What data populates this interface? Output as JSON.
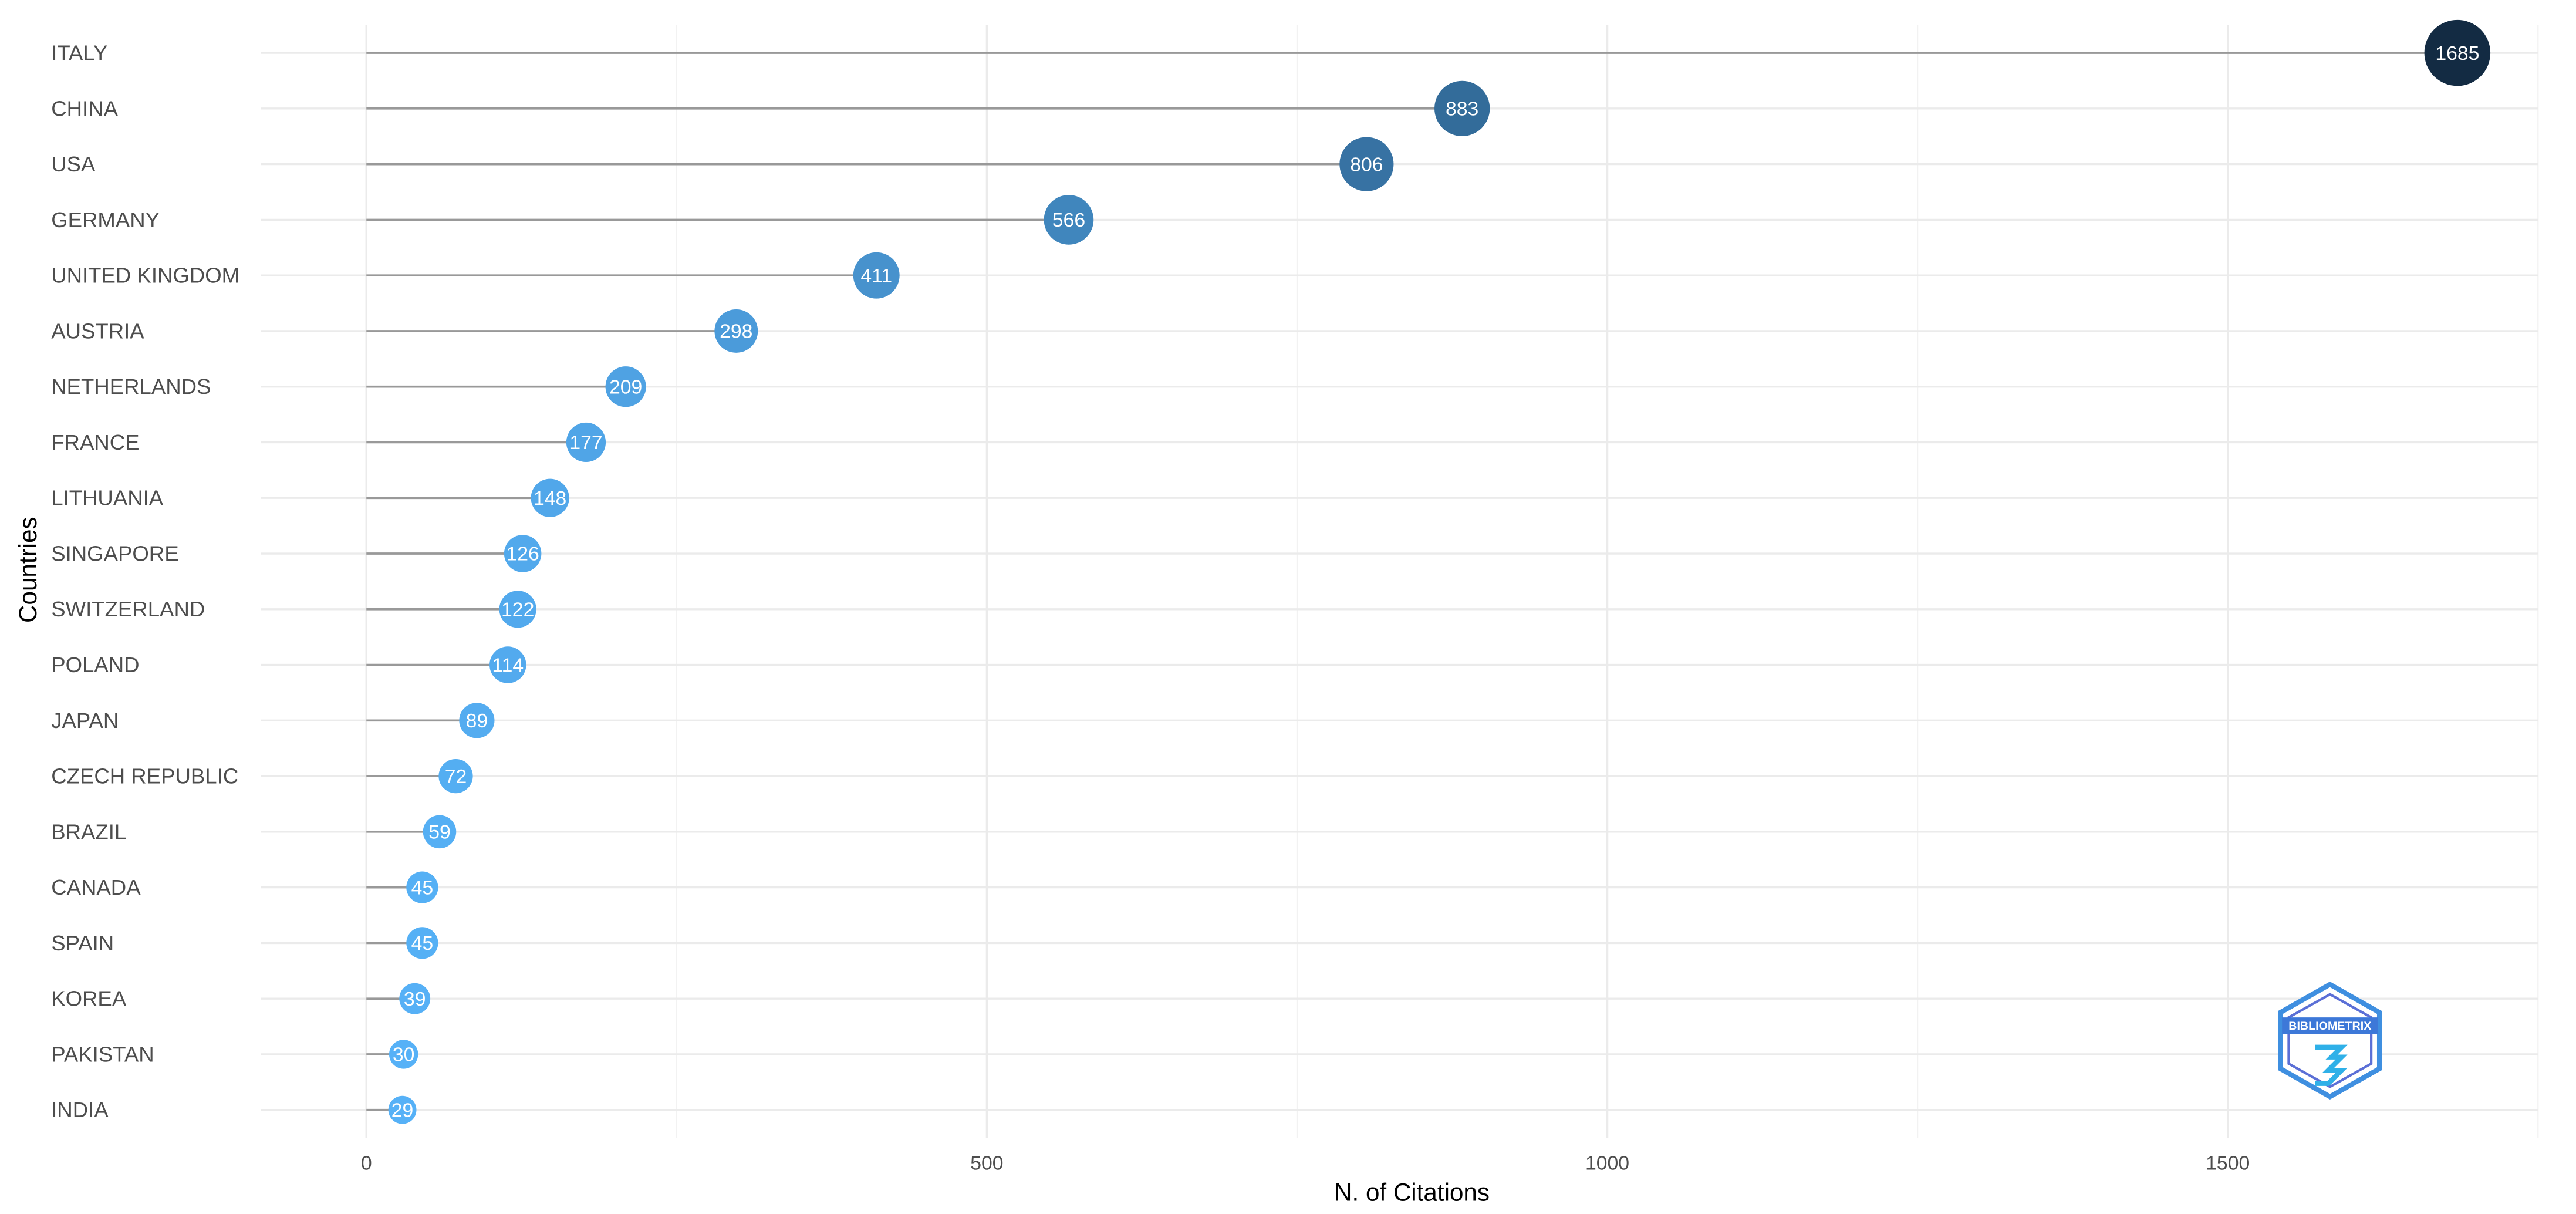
{
  "chart_data": {
    "type": "lollipop",
    "x_label": "N. of Citations",
    "y_label": "Countries",
    "categories": [
      "ITALY",
      "CHINA",
      "USA",
      "GERMANY",
      "UNITED KINGDOM",
      "AUSTRIA",
      "NETHERLANDS",
      "FRANCE",
      "LITHUANIA",
      "SINGAPORE",
      "SWITZERLAND",
      "POLAND",
      "JAPAN",
      "CZECH REPUBLIC",
      "BRAZIL",
      "CANADA",
      "SPAIN",
      "KOREA",
      "PAKISTAN",
      "INDIA"
    ],
    "values": [
      1685,
      883,
      806,
      566,
      411,
      298,
      209,
      177,
      148,
      126,
      122,
      114,
      89,
      72,
      59,
      45,
      45,
      39,
      30,
      29
    ],
    "xlim": [
      -85,
      1750
    ],
    "xticks": [
      0,
      500,
      1000,
      1500
    ],
    "xminor": [
      250,
      750,
      1250,
      1750
    ],
    "grid": true,
    "color_low": "#56B1F7",
    "color_high": "#132B43",
    "stem_color": "#999999",
    "logo": "BIBLIOMETRIX"
  }
}
